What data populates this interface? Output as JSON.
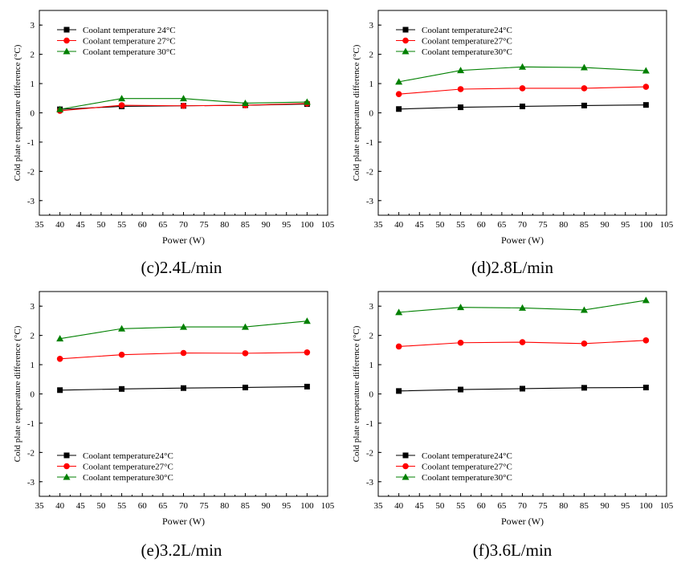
{
  "chart_data": [
    {
      "type": "line",
      "caption": "(c)2.4L/min",
      "xlabel": "Power (W)",
      "ylabel": "Cold plate temperature difference (°C)",
      "xlim": [
        35,
        105
      ],
      "ylim": [
        -3.5,
        3.5
      ],
      "xticks": [
        35,
        40,
        45,
        50,
        55,
        60,
        65,
        70,
        75,
        80,
        85,
        90,
        95,
        100,
        105
      ],
      "yticks": [
        -3,
        -2,
        -1,
        0,
        1,
        2,
        3
      ],
      "legend_position": "top-left",
      "x": [
        40,
        55,
        70,
        85,
        100
      ],
      "series": [
        {
          "name": "Coolant temperature 24°C",
          "marker": "square",
          "color": "#000000",
          "values": [
            0.12,
            0.22,
            0.24,
            0.26,
            0.3
          ]
        },
        {
          "name": "Coolant temperature 27°C",
          "marker": "circle",
          "color": "#ff0000",
          "values": [
            0.07,
            0.26,
            0.24,
            0.26,
            0.32
          ]
        },
        {
          "name": "Coolant temperature 30°C",
          "marker": "triangle",
          "color": "#008000",
          "values": [
            0.12,
            0.49,
            0.49,
            0.33,
            0.37
          ]
        }
      ]
    },
    {
      "type": "line",
      "caption": "(d)2.8L/min",
      "xlabel": "Power (W)",
      "ylabel": "Cold plate temperature difference (°C)",
      "xlim": [
        35,
        105
      ],
      "ylim": [
        -3.5,
        3.5
      ],
      "xticks": [
        35,
        40,
        45,
        50,
        55,
        60,
        65,
        70,
        75,
        80,
        85,
        90,
        95,
        100,
        105
      ],
      "yticks": [
        -3,
        -2,
        -1,
        0,
        1,
        2,
        3
      ],
      "legend_position": "top-left",
      "x": [
        40,
        55,
        70,
        85,
        100
      ],
      "series": [
        {
          "name": "Coolant temperature24°C",
          "marker": "square",
          "color": "#000000",
          "values": [
            0.13,
            0.19,
            0.22,
            0.25,
            0.27
          ]
        },
        {
          "name": "Coolant temperature27°C",
          "marker": "circle",
          "color": "#ff0000",
          "values": [
            0.64,
            0.81,
            0.84,
            0.84,
            0.89
          ]
        },
        {
          "name": "Coolant temperature30°C",
          "marker": "triangle",
          "color": "#008000",
          "values": [
            1.06,
            1.45,
            1.57,
            1.55,
            1.44
          ]
        }
      ]
    },
    {
      "type": "line",
      "caption": "(e)3.2L/min",
      "xlabel": "Power (W)",
      "ylabel": "Cold plate temperature difference (°C)",
      "xlim": [
        35,
        105
      ],
      "ylim": [
        -3.5,
        3.5
      ],
      "xticks": [
        35,
        40,
        45,
        50,
        55,
        60,
        65,
        70,
        75,
        80,
        85,
        90,
        95,
        100,
        105
      ],
      "yticks": [
        -3,
        -2,
        -1,
        0,
        1,
        2,
        3
      ],
      "legend_position": "bottom-left",
      "x": [
        40,
        55,
        70,
        85,
        100
      ],
      "series": [
        {
          "name": "Coolant temperature24°C",
          "marker": "square",
          "color": "#000000",
          "values": [
            0.13,
            0.17,
            0.2,
            0.22,
            0.25
          ]
        },
        {
          "name": "Coolant temperature27°C",
          "marker": "circle",
          "color": "#ff0000",
          "values": [
            1.2,
            1.34,
            1.4,
            1.39,
            1.42
          ]
        },
        {
          "name": "Coolant temperature30°C",
          "marker": "triangle",
          "color": "#008000",
          "values": [
            1.89,
            2.23,
            2.29,
            2.29,
            2.49
          ]
        }
      ]
    },
    {
      "type": "line",
      "caption": "(f)3.6L/min",
      "xlabel": "Power (W)",
      "ylabel": "Cold plate temperature difference (°C)",
      "xlim": [
        35,
        105
      ],
      "ylim": [
        -3.5,
        3.5
      ],
      "xticks": [
        35,
        40,
        45,
        50,
        55,
        60,
        65,
        70,
        75,
        80,
        85,
        90,
        95,
        100,
        105
      ],
      "yticks": [
        -3,
        -2,
        -1,
        0,
        1,
        2,
        3
      ],
      "legend_position": "bottom-left",
      "x": [
        40,
        55,
        70,
        85,
        100
      ],
      "series": [
        {
          "name": "Coolant temperature24°C",
          "marker": "square",
          "color": "#000000",
          "values": [
            0.1,
            0.15,
            0.18,
            0.21,
            0.22
          ]
        },
        {
          "name": "Coolant temperature27°C",
          "marker": "circle",
          "color": "#ff0000",
          "values": [
            1.62,
            1.75,
            1.77,
            1.72,
            1.83
          ]
        },
        {
          "name": "Coolant temperature30°C",
          "marker": "triangle",
          "color": "#008000",
          "values": [
            2.79,
            2.96,
            2.94,
            2.87,
            3.2
          ]
        }
      ]
    }
  ]
}
